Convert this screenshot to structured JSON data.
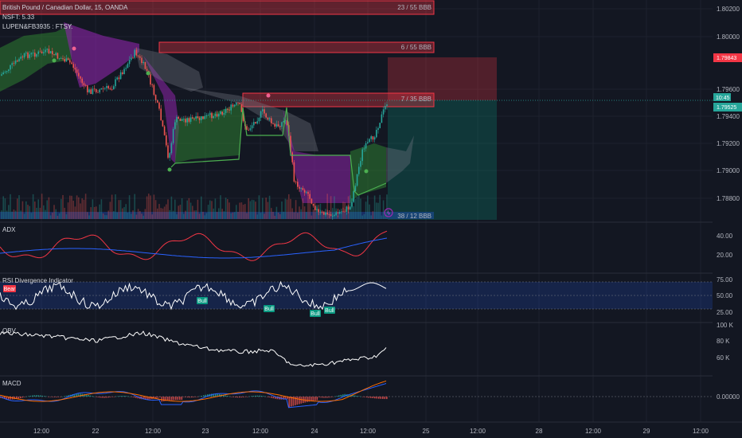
{
  "header": {
    "symbol_title": "British Pound / Canadian Dollar, 15, OANDA",
    "indicator_line_1": "NSFT: 5.33",
    "indicator_line_2": "LUPEN&FB3935 : FTSY."
  },
  "price_axis": {
    "ticks": [
      "1.80200",
      "1.80000",
      "1.79600",
      "1.79400",
      "1.79200",
      "1.79000",
      "1.78800"
    ],
    "badge_red": "1.79843",
    "badge_time": "10:45",
    "badge_current": "1.79525"
  },
  "zones": {
    "zone_top_label": "23 / 55 BBB",
    "zone_mid_label": "6 / 55 BBB",
    "zone_low_label": "7 / 35 BBB",
    "zone_bottom_label": "38 / 12 BBB"
  },
  "panes": {
    "adx": {
      "title": "ADX",
      "ticks": [
        "40.00",
        "20.00"
      ]
    },
    "rsi": {
      "title": "RSI Divergence Indicator",
      "ticks": [
        "75.00",
        "50.00",
        "25.00"
      ],
      "bear_label": "Bear",
      "bull_labels": [
        "Bull",
        "Bull",
        "Bull",
        "Bull"
      ]
    },
    "obv": {
      "title": "OBV",
      "ticks": [
        "100 K",
        "80 K",
        "60 K"
      ]
    },
    "macd": {
      "title": "MACD",
      "ticks": [
        "0.00000"
      ]
    }
  },
  "time_axis": {
    "labels": [
      "12:00",
      "22",
      "12:00",
      "23",
      "12:00",
      "24",
      "12:00",
      "25",
      "12:00",
      "28",
      "12:00",
      "29",
      "12:00"
    ]
  },
  "colors": {
    "background": "#131722",
    "bull": "#26a69a",
    "bear": "#ef5350",
    "supply_zone": "#f23645",
    "cloud_green": "#1b5e20",
    "cloud_purple": "#7b1fa2",
    "adx_line": "#f23645",
    "di_line": "#2962ff",
    "rsi_band": "#1e3a5f"
  }
}
